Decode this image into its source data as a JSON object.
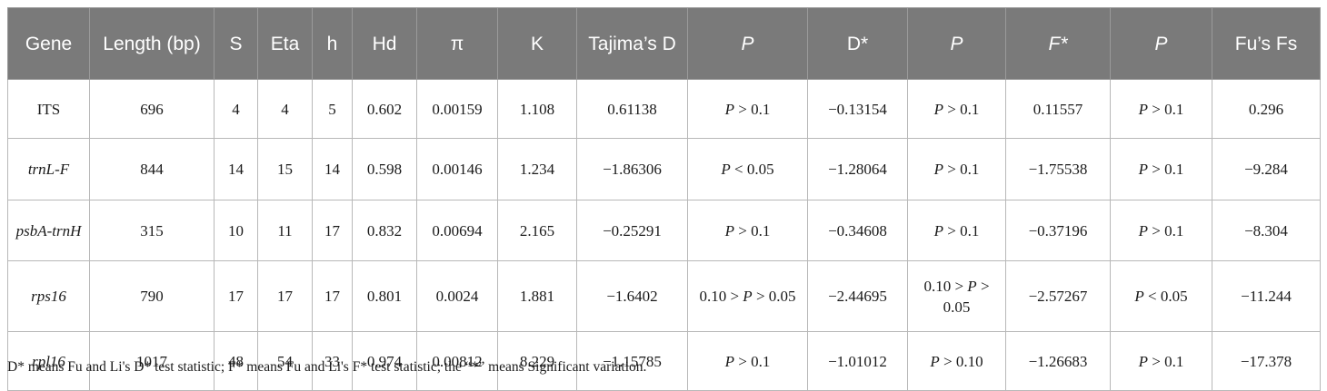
{
  "headers": [
    {
      "text": "Gene",
      "italic": false
    },
    {
      "text": "Length (bp)",
      "italic": false
    },
    {
      "text": "S",
      "italic": false
    },
    {
      "text": "Eta",
      "italic": false
    },
    {
      "text": "h",
      "italic": false
    },
    {
      "text": "Hd",
      "italic": false
    },
    {
      "text": "π",
      "italic": false
    },
    {
      "text": "K",
      "italic": false
    },
    {
      "text": "Tajima’s D",
      "italic": false
    },
    {
      "text": "P",
      "italic": true
    },
    {
      "text": "D*",
      "italic": false
    },
    {
      "text": "P",
      "italic": true
    },
    {
      "text": "F*",
      "italic": true
    },
    {
      "text": "P",
      "italic": true
    },
    {
      "text": "Fu’s Fs",
      "italic": false
    }
  ],
  "rows": [
    {
      "gene": "ITS",
      "gene_italic": false,
      "length": "696",
      "S": "4",
      "Eta": "4",
      "h": "5",
      "Hd": "0.602",
      "pi": "0.00159",
      "K": "1.108",
      "tajima": "0.61138",
      "p1": "P > 0.1",
      "dstar": "−0.13154",
      "p2": "P > 0.1",
      "fstar": "0.11557",
      "p3": "P > 0.1",
      "fs": "0.296"
    },
    {
      "gene": "trnL-F",
      "gene_italic": true,
      "length": "844",
      "S": "14",
      "Eta": "15",
      "h": "14",
      "Hd": "0.598",
      "pi": "0.00146",
      "K": "1.234",
      "tajima": "−1.86306",
      "p1": "P < 0.05",
      "dstar": "−1.28064",
      "p2": "P > 0.1",
      "fstar": "−1.75538",
      "p3": "P > 0.1",
      "fs": "−9.284"
    },
    {
      "gene": "psbA-trnH",
      "gene_italic": true,
      "length": "315",
      "S": "10",
      "Eta": "11",
      "h": "17",
      "Hd": "0.832",
      "pi": "0.00694",
      "K": "2.165",
      "tajima": "−0.25291",
      "p1": "P > 0.1",
      "dstar": "−0.34608",
      "p2": "P > 0.1",
      "fstar": "−0.37196",
      "p3": "P > 0.1",
      "fs": "−8.304"
    },
    {
      "gene": "rps16",
      "gene_italic": true,
      "length": "790",
      "S": "17",
      "Eta": "17",
      "h": "17",
      "Hd": "0.801",
      "pi": "0.0024",
      "K": "1.881",
      "tajima": "−1.6402",
      "p1": "0.10 > P > 0.05",
      "dstar": "−2.44695",
      "p2": "0.10 > P > 0.05",
      "fstar": "−2.57267",
      "p3": "P < 0.05",
      "fs": "−11.244"
    },
    {
      "gene": "rpl16",
      "gene_italic": true,
      "length": "1017",
      "S": "48",
      "Eta": "54",
      "h": "33",
      "Hd": "0.974",
      "pi": "0.00812",
      "K": "8.229",
      "tajima": "−1.15785",
      "p1": "P > 0.1",
      "dstar": "−1.01012",
      "p2": "P > 0.10",
      "fstar": "−1.26683",
      "p3": "P > 0.1",
      "fs": "−17.378"
    }
  ],
  "footnote": "D* means Fu and Li's D* test statistic; F* means Fu and Li's F* test statistic; the “*” means Significant variation."
}
